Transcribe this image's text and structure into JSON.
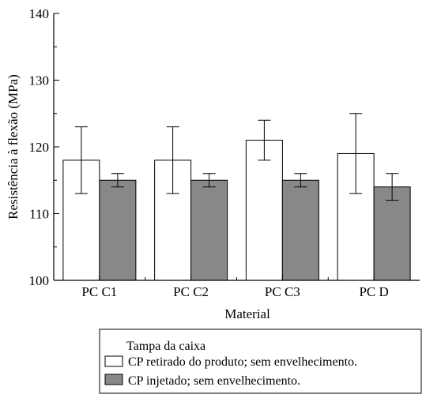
{
  "chart_data": {
    "type": "bar",
    "title": "",
    "xlabel": "Material",
    "ylabel": "Resistência à flexão (MPa)",
    "ylim": [
      100,
      140
    ],
    "yticks": [
      100,
      110,
      120,
      130,
      140
    ],
    "categories": [
      "PC C1",
      "PC C2",
      "PC C3",
      "PC D"
    ],
    "series": [
      {
        "name": "CP retirado do produto; sem envelhecimento.",
        "color": "#ffffff",
        "values": [
          118,
          118,
          121,
          119
        ],
        "error": [
          5,
          5,
          3,
          6
        ]
      },
      {
        "name": "CP injetado; sem envelhecimento.",
        "color": "#888888",
        "values": [
          115,
          115,
          115,
          114
        ],
        "error": [
          1,
          1,
          1,
          2
        ]
      }
    ],
    "legend": {
      "title": "Tampa da caixa",
      "placement": "bottom"
    },
    "grid": false
  }
}
